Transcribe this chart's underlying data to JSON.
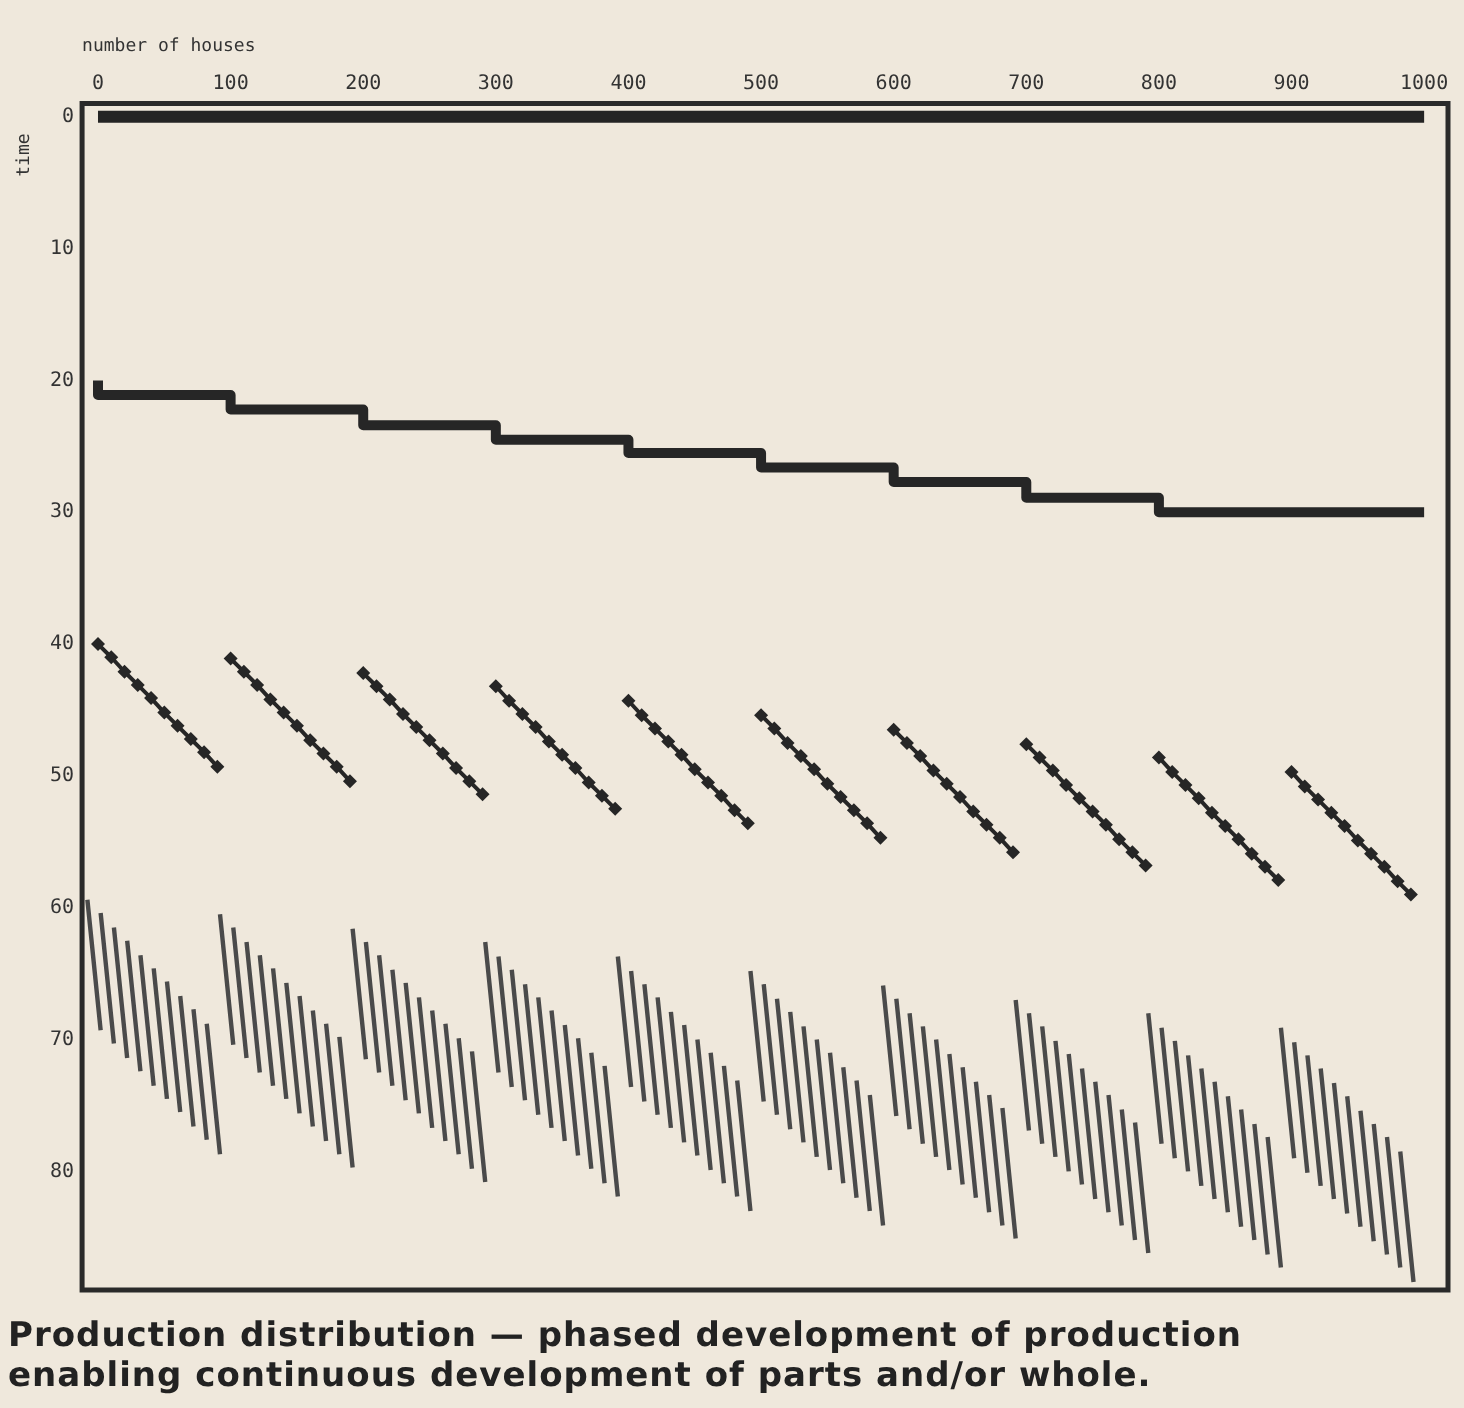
{
  "chart_data": {
    "type": "line",
    "title": "Production distribution — phased development of production enabling continuous development of parts and/or whole.",
    "xlabel": "number of houses",
    "ylabel": "time",
    "xlim": [
      -12,
      1018
    ],
    "ylim": [
      89,
      -1
    ],
    "xticks": [
      0,
      100,
      200,
      300,
      400,
      500,
      600,
      700,
      800,
      900,
      1000
    ],
    "yticks": [
      0,
      10,
      20,
      30,
      40,
      50,
      60,
      70,
      80
    ],
    "grid": false,
    "legend": false,
    "series": [
      {
        "type": "line",
        "color": "#242424",
        "x": [
          0,
          1000
        ],
        "values": [
          0,
          0
        ]
      },
      {
        "type": "step",
        "color": "#262626",
        "x": [
          0,
          100,
          200,
          300,
          400,
          500,
          600,
          700,
          800,
          900,
          1000
        ],
        "values": [
          20,
          21.1,
          22.2,
          23.4,
          24.5,
          25.5,
          26.6,
          27.7,
          28.9,
          30,
          30
        ]
      },
      {
        "type": "line",
        "color": "#262626",
        "marker": "diamond",
        "x": [
          0,
          10,
          20,
          30,
          40,
          50,
          60,
          70,
          80,
          90,
          null,
          100,
          110,
          120,
          130,
          140,
          150,
          160,
          170,
          180,
          190,
          null,
          200,
          210,
          220,
          230,
          240,
          250,
          260,
          270,
          280,
          290,
          null,
          300,
          310,
          320,
          330,
          340,
          350,
          360,
          370,
          380,
          390,
          null,
          400,
          410,
          420,
          430,
          440,
          450,
          460,
          470,
          480,
          490,
          null,
          500,
          510,
          520,
          530,
          540,
          550,
          560,
          570,
          580,
          590,
          null,
          600,
          610,
          620,
          630,
          640,
          650,
          660,
          670,
          680,
          690,
          null,
          700,
          710,
          720,
          730,
          740,
          750,
          760,
          770,
          780,
          790,
          null,
          800,
          810,
          820,
          830,
          840,
          850,
          860,
          870,
          880,
          890,
          null,
          900,
          910,
          920,
          930,
          940,
          950,
          960,
          970,
          980,
          990
        ],
        "values": [
          40,
          41,
          42.1,
          43.1,
          44.1,
          45.2,
          46.2,
          47.2,
          48.2,
          49.3,
          null,
          41.1,
          42.1,
          43.1,
          44.2,
          45.2,
          46.2,
          47.3,
          48.3,
          49.3,
          50.4,
          null,
          42.2,
          43.2,
          44.2,
          45.3,
          46.3,
          47.3,
          48.3,
          49.4,
          50.4,
          51.4,
          null,
          43.2,
          44.3,
          45.3,
          46.3,
          47.4,
          48.4,
          49.4,
          50.5,
          51.5,
          52.5,
          null,
          44.3,
          45.4,
          46.4,
          47.4,
          48.4,
          49.5,
          50.5,
          51.5,
          52.6,
          53.6,
          null,
          45.4,
          46.4,
          47.5,
          48.5,
          49.5,
          50.6,
          51.6,
          52.6,
          53.6,
          54.7,
          null,
          46.5,
          47.5,
          48.5,
          49.6,
          50.6,
          51.6,
          52.7,
          53.7,
          54.7,
          55.8,
          null,
          47.6,
          48.6,
          49.6,
          50.7,
          51.7,
          52.7,
          53.7,
          54.8,
          55.8,
          56.8,
          null,
          48.6,
          49.7,
          50.7,
          51.7,
          52.8,
          53.8,
          54.8,
          55.9,
          56.9,
          57.9,
          null,
          49.7,
          50.8,
          51.8,
          52.8,
          53.8,
          54.9,
          55.9,
          56.9,
          58,
          59
        ]
      },
      {
        "type": "line",
        "color": "#4a4a4a",
        "x": [
          -8,
          2,
          null,
          2,
          12,
          null,
          12,
          22,
          null,
          22,
          32,
          null,
          32,
          42,
          null,
          42,
          52,
          null,
          52,
          62,
          null,
          62,
          72,
          null,
          72,
          82,
          null,
          82,
          92,
          null,
          92,
          102,
          null,
          102,
          112,
          null,
          112,
          122,
          null,
          122,
          132,
          null,
          132,
          142,
          null,
          142,
          152,
          null,
          152,
          162,
          null,
          162,
          172,
          null,
          172,
          182,
          null,
          182,
          192,
          null,
          192,
          202,
          null,
          202,
          212,
          null,
          212,
          222,
          null,
          222,
          232,
          null,
          232,
          242,
          null,
          242,
          252,
          null,
          252,
          262,
          null,
          262,
          272,
          null,
          272,
          282,
          null,
          282,
          292,
          null,
          292,
          302,
          null,
          302,
          312,
          null,
          312,
          322,
          null,
          322,
          332,
          null,
          332,
          342,
          null,
          342,
          352,
          null,
          352,
          362,
          null,
          362,
          372,
          null,
          372,
          382,
          null,
          382,
          392,
          null,
          392,
          402,
          null,
          402,
          412,
          null,
          412,
          422,
          null,
          422,
          432,
          null,
          432,
          442,
          null,
          442,
          452,
          null,
          452,
          462,
          null,
          462,
          472,
          null,
          472,
          482,
          null,
          482,
          492,
          null,
          492,
          502,
          null,
          502,
          512,
          null,
          512,
          522,
          null,
          522,
          532,
          null,
          532,
          542,
          null,
          542,
          552,
          null,
          552,
          562,
          null,
          562,
          572,
          null,
          572,
          582,
          null,
          582,
          592,
          null,
          592,
          602,
          null,
          602,
          612,
          null,
          612,
          622,
          null,
          622,
          632,
          null,
          632,
          642,
          null,
          642,
          652,
          null,
          652,
          662,
          null,
          662,
          672,
          null,
          672,
          682,
          null,
          682,
          692,
          null,
          692,
          702,
          null,
          702,
          712,
          null,
          712,
          722,
          null,
          722,
          732,
          null,
          732,
          742,
          null,
          742,
          752,
          null,
          752,
          762,
          null,
          762,
          772,
          null,
          772,
          782,
          null,
          782,
          792,
          null,
          792,
          802,
          null,
          802,
          812,
          null,
          812,
          822,
          null,
          822,
          832,
          null,
          832,
          842,
          null,
          842,
          852,
          null,
          852,
          862,
          null,
          862,
          872,
          null,
          872,
          882,
          null,
          882,
          892,
          null,
          892,
          902,
          null,
          902,
          912,
          null,
          912,
          922,
          null,
          922,
          932,
          null,
          932,
          942,
          null,
          942,
          952,
          null,
          952,
          962,
          null,
          962,
          972,
          null,
          972,
          982,
          null,
          982,
          992
        ],
        "values": [
          59.4,
          69.3,
          null,
          60.4,
          70.3,
          null,
          61.5,
          71.4,
          null,
          62.5,
          72.4,
          null,
          63.6,
          73.5,
          null,
          64.6,
          74.5,
          null,
          65.6,
          75.5,
          null,
          66.7,
          76.6,
          null,
          67.7,
          77.6,
          null,
          68.8,
          78.7,
          null,
          60.5,
          70.4,
          null,
          61.5,
          71.4,
          null,
          62.6,
          72.5,
          null,
          63.6,
          73.5,
          null,
          64.6,
          74.5,
          null,
          65.7,
          75.6,
          null,
          66.7,
          76.6,
          null,
          67.8,
          77.7,
          null,
          68.8,
          78.7,
          null,
          69.8,
          79.7,
          null,
          61.6,
          71.5,
          null,
          62.6,
          72.5,
          null,
          63.6,
          73.5,
          null,
          64.7,
          74.6,
          null,
          65.7,
          75.6,
          null,
          66.8,
          76.7,
          null,
          67.8,
          77.7,
          null,
          68.8,
          78.7,
          null,
          69.9,
          79.8,
          null,
          70.9,
          80.8,
          null,
          62.6,
          72.5,
          null,
          63.7,
          73.6,
          null,
          64.7,
          74.6,
          null,
          65.8,
          75.7,
          null,
          66.8,
          76.7,
          null,
          67.8,
          77.7,
          null,
          68.9,
          78.8,
          null,
          69.9,
          79.8,
          null,
          71,
          80.9,
          null,
          72,
          81.9,
          null,
          63.7,
          73.6,
          null,
          64.8,
          74.7,
          null,
          65.8,
          75.7,
          null,
          66.8,
          76.7,
          null,
          67.9,
          77.8,
          null,
          68.9,
          78.8,
          null,
          70,
          79.9,
          null,
          71,
          80.9,
          null,
          72,
          81.9,
          null,
          73.1,
          83,
          null,
          64.8,
          74.7,
          null,
          65.8,
          75.7,
          null,
          66.9,
          76.8,
          null,
          67.9,
          77.8,
          null,
          69,
          78.9,
          null,
          70,
          79.9,
          null,
          71,
          80.9,
          null,
          72.1,
          82,
          null,
          73.1,
          83,
          null,
          74.2,
          84.1,
          null,
          65.9,
          75.8,
          null,
          66.9,
          76.8,
          null,
          68,
          77.9,
          null,
          69,
          78.9,
          null,
          70,
          79.9,
          null,
          71.1,
          81,
          null,
          72.1,
          82,
          null,
          73.2,
          83.1,
          null,
          74.2,
          84.1,
          null,
          75.2,
          85.1,
          null,
          67,
          76.9,
          null,
          68,
          77.9,
          null,
          69,
          78.9,
          null,
          70.1,
          80,
          null,
          71.1,
          81,
          null,
          72.2,
          82.1,
          null,
          73.2,
          83.1,
          null,
          74.2,
          84.1,
          null,
          75.3,
          85.2,
          null,
          76.3,
          86.2,
          null,
          68,
          77.9,
          null,
          69.1,
          79,
          null,
          70.1,
          80,
          null,
          71.2,
          81.1,
          null,
          72.2,
          82.1,
          null,
          73.2,
          83.1,
          null,
          74.3,
          84.2,
          null,
          75.3,
          85.2,
          null,
          76.4,
          86.3,
          null,
          77.4,
          87.3,
          null,
          69.1,
          79,
          null,
          70.2,
          80.1,
          null,
          71.2,
          81.1,
          null,
          72.2,
          82.1,
          null,
          73.3,
          83.2,
          null,
          74.3,
          84.2,
          null,
          75.4,
          85.3,
          null,
          76.4,
          86.3,
          null,
          77.4,
          87.3,
          null,
          78.5,
          88.4
        ]
      }
    ]
  }
}
